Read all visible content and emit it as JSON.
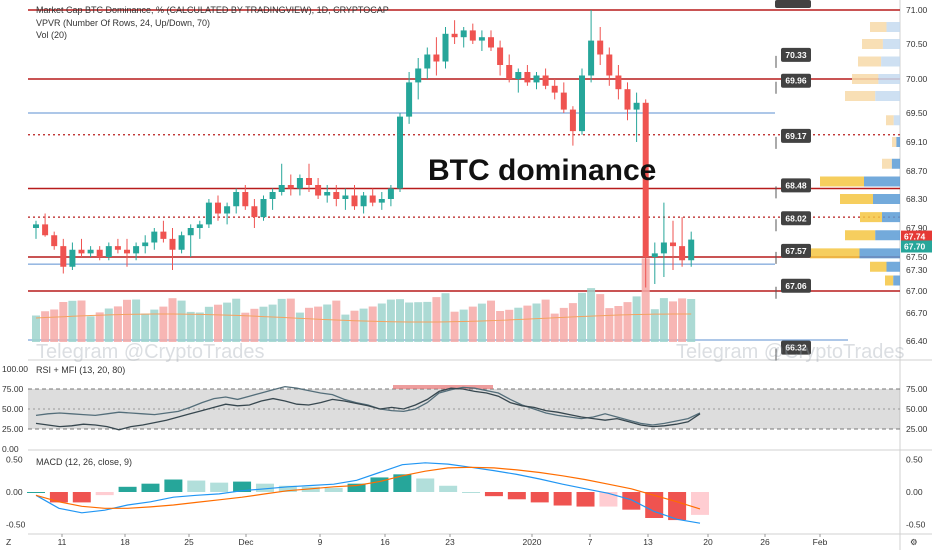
{
  "header": {
    "title": "Market Cap BTC Dominance, % (CALCULATED BY TRADINGVIEW), 1D, CRYPTOCAP",
    "indicator1": "VPVR (Number Of Rows, 24, Up/Down, 70)",
    "indicator2": "Vol (20)"
  },
  "annotation": "BTC dominance",
  "watermarks": [
    "Telegram @CryptoTrades",
    "Telegram @CryptoTrades"
  ],
  "rsi_panel": {
    "title": "RSI + MFI (13, 20, 80)"
  },
  "macd_panel": {
    "title": "MACD (12, 26, close, 9)"
  },
  "x_axis": {
    "labels": [
      "11",
      "18",
      "25",
      "Dec",
      "9",
      "16",
      "23",
      "2020",
      "7",
      "13",
      "20",
      "26",
      "Feb"
    ],
    "corner_left": "Z",
    "corner_right": "⚙"
  },
  "colors": {
    "up": "#26a69a",
    "down": "#ef5350",
    "level_line": "#b71c1c",
    "blue_line": "#5b8fd1",
    "tag_bg": "#424242",
    "price_last_red": "#e53935",
    "price_last_teal": "#26a69a"
  },
  "chart_data": [
    {
      "type": "candlestick",
      "title": "Market Cap BTC Dominance, % (CALCULATED BY TRADINGVIEW), 1D, CRYPTOCAP",
      "y_ticks": [
        "71.00",
        "70.50",
        "70.00",
        "69.50",
        "69.10",
        "68.70",
        "68.30",
        "67.90",
        "67.50",
        "67.30",
        "67.00",
        "66.70",
        "66.40"
      ],
      "ylim": [
        66.15,
        71.1
      ],
      "level_tags": [
        70.33,
        69.96,
        69.17,
        68.48,
        68.02,
        67.57,
        67.06,
        66.32
      ],
      "last_prices": [
        67.74,
        67.7
      ],
      "candles_ohlc": [
        [
          67.9,
          68.0,
          67.75,
          67.95
        ],
        [
          67.95,
          68.1,
          67.78,
          67.8
        ],
        [
          67.8,
          67.85,
          67.6,
          67.65
        ],
        [
          67.65,
          67.75,
          67.25,
          67.35
        ],
        [
          67.35,
          67.7,
          67.3,
          67.6
        ],
        [
          67.6,
          67.75,
          67.5,
          67.55
        ],
        [
          67.55,
          67.65,
          67.5,
          67.6
        ],
        [
          67.6,
          67.65,
          67.45,
          67.5
        ],
        [
          67.5,
          67.7,
          67.45,
          67.65
        ],
        [
          67.65,
          67.75,
          67.55,
          67.6
        ],
        [
          67.6,
          67.75,
          67.35,
          67.55
        ],
        [
          67.55,
          67.7,
          67.45,
          67.65
        ],
        [
          67.65,
          67.8,
          67.55,
          67.7
        ],
        [
          67.7,
          67.9,
          67.6,
          67.85
        ],
        [
          67.85,
          68.0,
          67.7,
          67.75
        ],
        [
          67.75,
          67.9,
          67.3,
          67.6
        ],
        [
          67.6,
          67.85,
          67.55,
          67.8
        ],
        [
          67.8,
          67.95,
          67.5,
          67.9
        ],
        [
          67.9,
          68.0,
          67.75,
          67.95
        ],
        [
          67.95,
          68.3,
          67.9,
          68.25
        ],
        [
          68.25,
          68.35,
          68.0,
          68.1
        ],
        [
          68.1,
          68.25,
          67.95,
          68.2
        ],
        [
          68.2,
          68.45,
          68.1,
          68.4
        ],
        [
          68.4,
          68.5,
          68.15,
          68.2
        ],
        [
          68.2,
          68.3,
          67.9,
          68.05
        ],
        [
          68.05,
          68.35,
          68.0,
          68.3
        ],
        [
          68.3,
          68.45,
          68.15,
          68.4
        ],
        [
          68.4,
          68.8,
          68.35,
          68.5
        ],
        [
          68.5,
          68.65,
          68.35,
          68.45
        ],
        [
          68.45,
          68.65,
          68.35,
          68.6
        ],
        [
          68.6,
          68.8,
          68.4,
          68.5
        ],
        [
          68.5,
          68.6,
          68.3,
          68.35
        ],
        [
          68.35,
          68.5,
          68.25,
          68.4
        ],
        [
          68.4,
          68.5,
          68.2,
          68.3
        ],
        [
          68.3,
          68.45,
          68.15,
          68.35
        ],
        [
          68.35,
          68.5,
          68.15,
          68.2
        ],
        [
          68.2,
          68.4,
          68.1,
          68.35
        ],
        [
          68.35,
          68.45,
          68.2,
          68.25
        ],
        [
          68.25,
          68.4,
          68.15,
          68.3
        ],
        [
          68.3,
          68.5,
          68.2,
          68.45
        ],
        [
          68.45,
          69.5,
          68.4,
          69.45
        ],
        [
          69.45,
          70.1,
          69.35,
          69.95
        ],
        [
          69.95,
          70.3,
          69.7,
          70.15
        ],
        [
          70.15,
          70.45,
          70.0,
          70.35
        ],
        [
          70.35,
          70.6,
          70.05,
          70.25
        ],
        [
          70.25,
          70.75,
          70.15,
          70.65
        ],
        [
          70.65,
          70.85,
          70.5,
          70.6
        ],
        [
          70.6,
          70.75,
          70.45,
          70.7
        ],
        [
          70.7,
          70.8,
          70.5,
          70.55
        ],
        [
          70.55,
          70.7,
          70.4,
          70.6
        ],
        [
          70.6,
          70.7,
          70.4,
          70.45
        ],
        [
          70.45,
          70.55,
          70.05,
          70.2
        ],
        [
          70.2,
          70.35,
          69.95,
          70.0
        ],
        [
          70.0,
          70.15,
          69.8,
          70.1
        ],
        [
          70.1,
          70.2,
          69.9,
          69.95
        ],
        [
          69.95,
          70.1,
          69.85,
          70.05
        ],
        [
          70.05,
          70.15,
          69.85,
          69.9
        ],
        [
          69.9,
          70.0,
          69.7,
          69.8
        ],
        [
          69.8,
          69.95,
          69.5,
          69.55
        ],
        [
          69.55,
          69.6,
          69.05,
          69.25
        ],
        [
          69.25,
          70.15,
          69.2,
          70.05
        ],
        [
          70.05,
          71.0,
          69.95,
          70.55
        ],
        [
          70.55,
          70.75,
          70.2,
          70.35
        ],
        [
          70.35,
          70.45,
          69.9,
          70.05
        ],
        [
          70.05,
          70.2,
          69.7,
          69.85
        ],
        [
          69.85,
          69.95,
          69.4,
          69.55
        ],
        [
          69.55,
          69.8,
          69.1,
          69.65
        ],
        [
          69.65,
          69.7,
          67.05,
          67.5
        ],
        [
          67.5,
          67.7,
          67.1,
          67.55
        ],
        [
          67.55,
          68.25,
          67.2,
          67.7
        ],
        [
          67.7,
          68.0,
          67.3,
          67.65
        ],
        [
          67.65,
          68.05,
          67.35,
          67.45
        ],
        [
          67.45,
          67.85,
          67.35,
          67.74
        ]
      ],
      "volume_panel": {
        "label": "Vol (20)"
      }
    },
    {
      "type": "line",
      "title": "RSI + MFI (13, 20, 80)",
      "y_ticks": [
        "100.00",
        "75.00",
        "50.00",
        "25.00",
        "0.00"
      ],
      "ylim": [
        0,
        100
      ],
      "bands": [
        20,
        80
      ],
      "series": [
        {
          "values": [
            42,
            44,
            45,
            44,
            43,
            42,
            44,
            46,
            45,
            44,
            43,
            45,
            47,
            52,
            58,
            63,
            65,
            62,
            66,
            70,
            74,
            78,
            76,
            73,
            70,
            68,
            62,
            58,
            55,
            50,
            48,
            47,
            50,
            58,
            70,
            74,
            77,
            76,
            73,
            70,
            62,
            55,
            50,
            45,
            42,
            40,
            38,
            40,
            44,
            40,
            36,
            32,
            30,
            32,
            35,
            38,
            45
          ]
        },
        {
          "values": [
            32,
            30,
            28,
            29,
            31,
            30,
            28,
            24,
            28,
            30,
            33,
            36,
            40,
            44,
            48,
            52,
            56,
            54,
            55,
            60,
            63,
            60,
            56,
            55,
            58,
            62,
            60,
            57,
            54,
            50,
            52,
            50,
            55,
            62,
            72,
            76,
            75,
            72,
            70,
            66,
            58,
            54,
            52,
            48,
            46,
            43,
            40,
            38,
            36,
            38,
            34,
            30,
            28,
            29,
            31,
            34,
            44
          ]
        }
      ]
    },
    {
      "type": "bar",
      "title": "MACD (12, 26, close, 9)",
      "y_ticks": [
        "0.50",
        "0.00",
        "-0.50"
      ],
      "ylim": [
        -0.6,
        0.6
      ],
      "series": [
        {
          "values": [
            -0.05,
            -0.25,
            -0.32,
            -0.28,
            -0.2,
            -0.15,
            -0.08,
            -0.05,
            -0.03,
            0.02,
            0.05,
            0.08,
            0.1,
            0.12,
            0.18,
            0.3,
            0.42,
            0.45,
            0.43,
            0.38,
            0.33,
            0.27,
            0.2,
            0.12,
            0.05,
            -0.02,
            -0.12,
            -0.3,
            -0.42,
            -0.48
          ]
        },
        {
          "values": [
            -0.05,
            -0.15,
            -0.22,
            -0.25,
            -0.25,
            -0.23,
            -0.2,
            -0.16,
            -0.12,
            -0.08,
            -0.03,
            0.02,
            0.05,
            0.08,
            0.1,
            0.16,
            0.25,
            0.32,
            0.37,
            0.38,
            0.37,
            0.34,
            0.3,
            0.25,
            0.19,
            0.12,
            0.05,
            -0.05,
            -0.15,
            -0.26
          ]
        }
      ]
    }
  ]
}
